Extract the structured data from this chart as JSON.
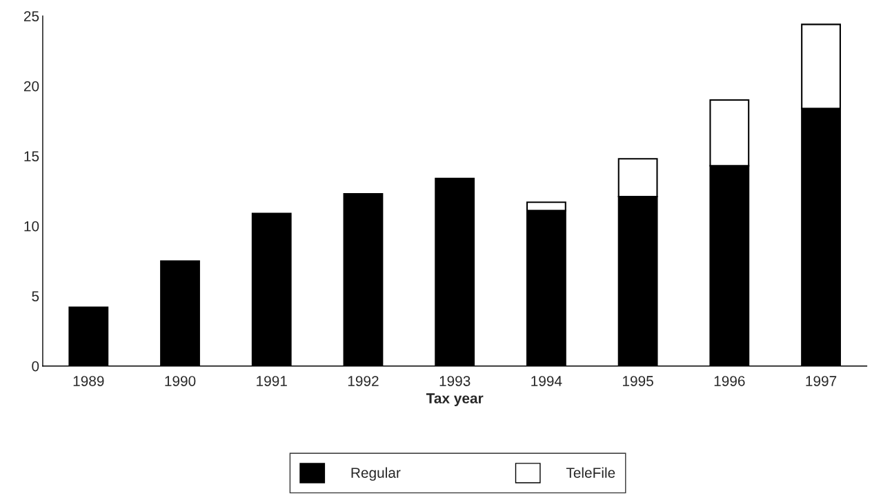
{
  "chart_data": {
    "type": "bar",
    "stacked": true,
    "xlabel": "Tax year",
    "categories": [
      "1989",
      "1990",
      "1991",
      "1992",
      "1993",
      "1994",
      "1995",
      "1996",
      "1997"
    ],
    "series": [
      {
        "name": "Regular",
        "color": "#000000",
        "values": [
          4.2,
          7.5,
          10.9,
          12.3,
          13.4,
          11.1,
          12.1,
          14.3,
          18.4
        ]
      },
      {
        "name": "TeleFile",
        "color": "#ffffff",
        "values": [
          null,
          null,
          null,
          null,
          null,
          0.6,
          2.7,
          4.7,
          6.0
        ]
      }
    ],
    "ylim": [
      0,
      25
    ],
    "yticks": [
      0,
      5,
      10,
      15,
      20,
      25
    ],
    "grid": false,
    "legend": "bottom"
  }
}
